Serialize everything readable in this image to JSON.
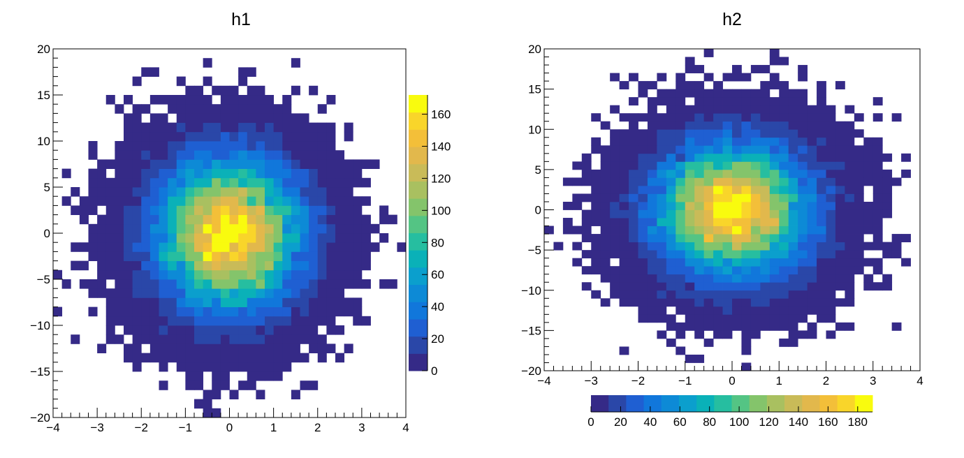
{
  "chart_data": [
    {
      "type": "heatmap",
      "title": "h1",
      "xlabel": "",
      "ylabel": "",
      "xlim": [
        -4,
        4
      ],
      "ylim": [
        -20,
        20
      ],
      "xticks": [
        -4,
        -3,
        -2,
        -1,
        0,
        1,
        2,
        3,
        4
      ],
      "yticks": [
        -20,
        -15,
        -10,
        -5,
        0,
        5,
        10,
        15,
        20
      ],
      "xtick_labels": [
        "−4",
        "−3",
        "−2",
        "−1",
        "0",
        "1",
        "2",
        "3",
        "4"
      ],
      "ytick_labels": [
        "−20",
        "−15",
        "−10",
        "−5",
        "0",
        "5",
        "10",
        "15",
        "20"
      ],
      "bins": {
        "nx": 40,
        "ny": 40
      },
      "distribution": {
        "model": "gaussian-2d",
        "mean_x": 0,
        "mean_y": 0,
        "sigma_x": 1,
        "sigma_y": 5,
        "peak": 170,
        "entries": 25000
      },
      "colorbar": {
        "orientation": "vertical",
        "placement": "right",
        "min": 0,
        "max": 172,
        "ticks": [
          0,
          20,
          40,
          60,
          80,
          100,
          120,
          140,
          160
        ],
        "tick_labels": [
          "0",
          "20",
          "40",
          "60",
          "80",
          "100",
          "120",
          "140",
          "160"
        ]
      },
      "grid": false
    },
    {
      "type": "heatmap",
      "title": "h2",
      "xlabel": "",
      "ylabel": "",
      "xlim": [
        -4,
        4
      ],
      "ylim": [
        -20,
        20
      ],
      "xticks": [
        -4,
        -3,
        -2,
        -1,
        0,
        1,
        2,
        3,
        4
      ],
      "yticks": [
        -20,
        -15,
        -10,
        -5,
        0,
        5,
        10,
        15,
        20
      ],
      "xtick_labels": [
        "−4",
        "−3",
        "−2",
        "−1",
        "0",
        "1",
        "2",
        "3",
        "4"
      ],
      "ytick_labels": [
        "−20",
        "−15",
        "−10",
        "−5",
        "0",
        "5",
        "10",
        "15",
        "20"
      ],
      "bins": {
        "nx": 40,
        "ny": 40
      },
      "distribution": {
        "model": "gaussian-2d",
        "mean_x": 0,
        "mean_y": 0,
        "sigma_x": 1,
        "sigma_y": 5,
        "peak": 185,
        "entries": 25000
      },
      "colorbar": {
        "orientation": "horizontal",
        "placement": "bottom",
        "min": 0,
        "max": 190,
        "ticks": [
          0,
          20,
          40,
          60,
          80,
          100,
          120,
          140,
          160,
          180
        ],
        "tick_labels": [
          "0",
          "20",
          "40",
          "60",
          "80",
          "100",
          "120",
          "140",
          "160",
          "180"
        ]
      },
      "grid": false
    }
  ],
  "palette": [
    "#352a87",
    "#2a47a8",
    "#1f5fd2",
    "#1177db",
    "#0d8ad6",
    "#0b9fcd",
    "#0ab1b8",
    "#26bea0",
    "#54c484",
    "#84c46b",
    "#a9c060",
    "#c9bb58",
    "#e2b84c",
    "#f3bf39",
    "#f9d52a",
    "#f9fb0e"
  ]
}
